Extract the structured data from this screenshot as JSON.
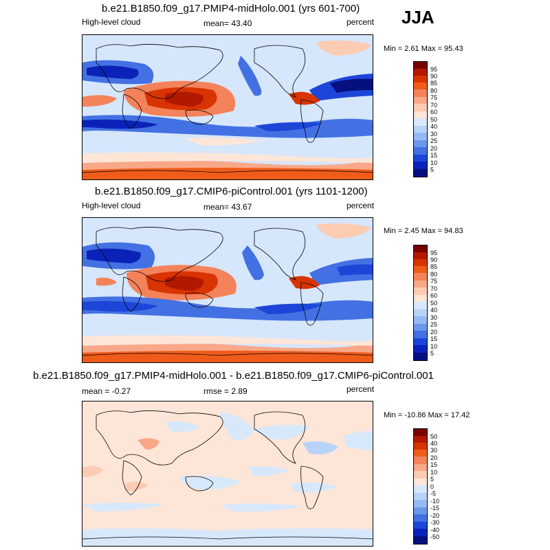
{
  "season": "JJA",
  "panels": [
    {
      "title": "b.e21.B1850.f09_g17.PMIP4-midHolo.001 (yrs 601-700)",
      "left_label": "High-level cloud",
      "center_label": "mean=  43.40",
      "right_label": "percent",
      "minmax": "Min =   2.61 Max =  95.43"
    },
    {
      "title": "b.e21.B1850.f09_g17.CMIP6-piControl.001 (yrs 1101-1200)",
      "left_label": "High-level cloud",
      "center_label": "mean=  43.67",
      "right_label": "percent",
      "minmax": "Min =   2.45 Max =  94.83"
    },
    {
      "title": "b.e21.B1850.f09_g17.PMIP4-midHolo.001 - b.e21.B1850.f09_g17.CMIP6-piControl.001",
      "left_label": "mean =  -0.27",
      "center_label": "rmse =   2.89",
      "right_label": "percent",
      "minmax": "Min = -10.86 Max =  17.42"
    }
  ],
  "colorbar_abs": {
    "labels": [
      "95",
      "90",
      "85",
      "80",
      "75",
      "70",
      "60",
      "50",
      "40",
      "30",
      "25",
      "20",
      "15",
      "10",
      "5"
    ],
    "colors": [
      "#7a0000",
      "#b01800",
      "#d83400",
      "#ef5c1a",
      "#f4825a",
      "#f8a888",
      "#fbcbb2",
      "#fde6d8",
      "#d8e8fb",
      "#b8d3f8",
      "#95baf3",
      "#6c98ea",
      "#4371e3",
      "#1d46d8",
      "#0b22b8",
      "#050f7e"
    ]
  },
  "colorbar_diff": {
    "labels": [
      "50",
      "40",
      "30",
      "20",
      "15",
      "10",
      "5",
      "0",
      "-5",
      "-10",
      "-15",
      "-20",
      "-30",
      "-40",
      "-50"
    ],
    "colors": [
      "#7a0000",
      "#b01800",
      "#d83400",
      "#ef5c1a",
      "#f4825a",
      "#f8a888",
      "#fbcbb2",
      "#fde6d8",
      "#d8e8fb",
      "#b8d3f8",
      "#95baf3",
      "#6c98ea",
      "#4371e3",
      "#1d46d8",
      "#0b22b8",
      "#050f7e"
    ]
  }
}
